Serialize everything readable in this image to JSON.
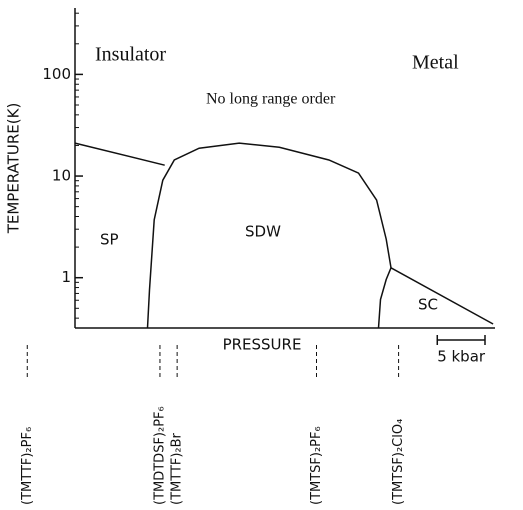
{
  "chart_data": {
    "type": "phase_diagram",
    "xlabel": "PRESSURE",
    "ylabel": "TEMPERATURE(K)",
    "ylog": true,
    "xlim": [
      0,
      44
    ],
    "ylim": [
      0.32,
      450
    ],
    "yticks": [
      1,
      10,
      100
    ],
    "regions": [
      "Insulator",
      "Metal",
      "No long range order",
      "SP",
      "SDW",
      "SC"
    ],
    "series": [
      {
        "name": "SP boundary",
        "color": "#111111",
        "x": [
          0,
          9.4
        ],
        "values": [
          21.1,
          12.8
        ]
      },
      {
        "name": "SDW boundary",
        "color": "#111111",
        "x": [
          7.6,
          7.8,
          8.3,
          9.2,
          10.4,
          13.0,
          17.2,
          21.4,
          26.6,
          29.7,
          31.6,
          32.6,
          33.1
        ],
        "values": [
          0.32,
          0.76,
          3.7,
          9.1,
          14.4,
          18.8,
          21.1,
          19.2,
          14.4,
          10.7,
          5.8,
          2.4,
          1.25
        ]
      },
      {
        "name": "SC boundary",
        "color": "#111111",
        "x": [
          31.8,
          32.0,
          32.6,
          33.1,
          43.8
        ],
        "values": [
          0.32,
          0.61,
          0.96,
          1.25,
          0.35
        ]
      }
    ],
    "scale_bar": {
      "label": "5 kbar",
      "length": 5
    },
    "compounds": [
      {
        "label": "(TMTTF)₂PF₆",
        "x": -5.0
      },
      {
        "label": "(TMDTDSF)₂PF₆",
        "x": 8.9
      },
      {
        "label": "(TMTTF)₂Br",
        "x": 10.7
      },
      {
        "label": "(TMTSF)₂PF₆",
        "x": 25.3
      },
      {
        "label": "(TMTSF)₂ClO₄",
        "x": 33.9
      }
    ]
  }
}
